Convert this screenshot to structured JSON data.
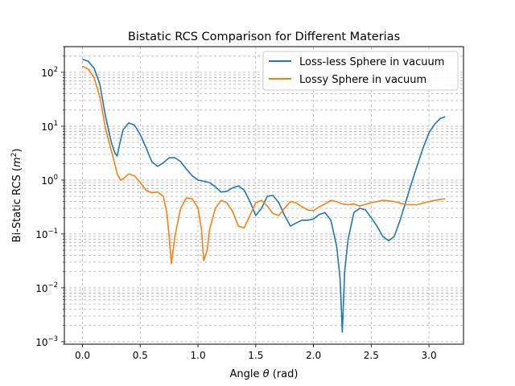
{
  "chart_data": {
    "type": "line",
    "title": "Bistatic RCS Comparison for Different Materias",
    "xlabel": "Angle θ (rad)",
    "ylabel": "Bi-Static RCS (m²)",
    "ylabel_base": "Bi-Static RCS (",
    "ylabel_var": "m",
    "ylabel_sup": "2",
    "ylabel_close": ")",
    "xlim": [
      -0.157,
      3.299
    ],
    "ylim": [
      0.0009,
      300
    ],
    "xscale": "linear",
    "yscale": "log",
    "grid": true,
    "legend_position": "top-right",
    "xticks": [
      0.0,
      0.5,
      1.0,
      1.5,
      2.0,
      2.5,
      3.0
    ],
    "xtick_labels": [
      "0.0",
      "0.5",
      "1.0",
      "1.5",
      "2.0",
      "2.5",
      "3.0"
    ],
    "yticks": [
      0.001,
      0.01,
      0.1,
      1,
      10,
      100
    ],
    "ytick_labels": [
      {
        "base": "10",
        "exp": "−3"
      },
      {
        "base": "10",
        "exp": "−2"
      },
      {
        "base": "10",
        "exp": "−1"
      },
      {
        "base": "10",
        "exp": "0"
      },
      {
        "base": "10",
        "exp": "1"
      },
      {
        "base": "10",
        "exp": "2"
      }
    ],
    "series": [
      {
        "name": "Loss-less Sphere in vacuum",
        "color": "#1f77b4",
        "x": [
          0.0,
          0.05,
          0.1,
          0.15,
          0.2,
          0.25,
          0.28,
          0.3,
          0.32,
          0.35,
          0.4,
          0.45,
          0.5,
          0.55,
          0.6,
          0.65,
          0.7,
          0.75,
          0.8,
          0.85,
          0.9,
          0.95,
          1.0,
          1.05,
          1.1,
          1.15,
          1.2,
          1.25,
          1.3,
          1.35,
          1.4,
          1.45,
          1.5,
          1.55,
          1.6,
          1.65,
          1.7,
          1.75,
          1.8,
          1.85,
          1.9,
          1.95,
          2.0,
          2.05,
          2.1,
          2.15,
          2.2,
          2.23,
          2.25,
          2.27,
          2.3,
          2.35,
          2.4,
          2.45,
          2.5,
          2.55,
          2.6,
          2.65,
          2.7,
          2.75,
          2.8,
          2.85,
          2.9,
          2.95,
          3.0,
          3.05,
          3.1,
          3.14
        ],
        "values": [
          175,
          160,
          120,
          60,
          15,
          5,
          3.2,
          2.8,
          4.5,
          8.5,
          11.5,
          10.5,
          7,
          4,
          2.2,
          1.8,
          2.1,
          2.6,
          2.6,
          2.2,
          1.6,
          1.2,
          1.0,
          0.95,
          0.9,
          0.75,
          0.6,
          0.62,
          0.72,
          0.78,
          0.65,
          0.4,
          0.22,
          0.3,
          0.5,
          0.52,
          0.38,
          0.22,
          0.14,
          0.16,
          0.18,
          0.18,
          0.19,
          0.23,
          0.25,
          0.18,
          0.06,
          0.015,
          0.0015,
          0.02,
          0.08,
          0.25,
          0.3,
          0.28,
          0.2,
          0.14,
          0.09,
          0.075,
          0.09,
          0.18,
          0.4,
          0.9,
          1.9,
          4,
          7.5,
          11,
          14,
          15
        ]
      },
      {
        "name": "Lossy Sphere in vacuum",
        "color": "#ff7f0e",
        "x": [
          0.0,
          0.05,
          0.1,
          0.15,
          0.2,
          0.25,
          0.28,
          0.3,
          0.33,
          0.35,
          0.4,
          0.45,
          0.5,
          0.55,
          0.6,
          0.65,
          0.7,
          0.73,
          0.75,
          0.77,
          0.8,
          0.85,
          0.9,
          0.95,
          1.0,
          1.03,
          1.05,
          1.08,
          1.1,
          1.15,
          1.2,
          1.25,
          1.3,
          1.35,
          1.4,
          1.45,
          1.5,
          1.55,
          1.6,
          1.65,
          1.7,
          1.75,
          1.8,
          1.85,
          1.9,
          1.95,
          2.0,
          2.05,
          2.1,
          2.15,
          2.2,
          2.25,
          2.3,
          2.35,
          2.4,
          2.5,
          2.6,
          2.7,
          2.8,
          2.9,
          3.0,
          3.1,
          3.14
        ],
        "values": [
          130,
          115,
          80,
          35,
          9,
          3.5,
          2.0,
          1.3,
          1.0,
          1.05,
          1.3,
          1.2,
          0.9,
          0.65,
          0.58,
          0.6,
          0.5,
          0.25,
          0.09,
          0.028,
          0.09,
          0.3,
          0.47,
          0.45,
          0.3,
          0.12,
          0.032,
          0.05,
          0.12,
          0.3,
          0.42,
          0.38,
          0.26,
          0.14,
          0.13,
          0.22,
          0.38,
          0.42,
          0.33,
          0.24,
          0.22,
          0.3,
          0.4,
          0.38,
          0.32,
          0.28,
          0.27,
          0.32,
          0.36,
          0.42,
          0.4,
          0.36,
          0.35,
          0.36,
          0.33,
          0.38,
          0.42,
          0.4,
          0.35,
          0.35,
          0.4,
          0.44,
          0.45
        ]
      }
    ]
  }
}
